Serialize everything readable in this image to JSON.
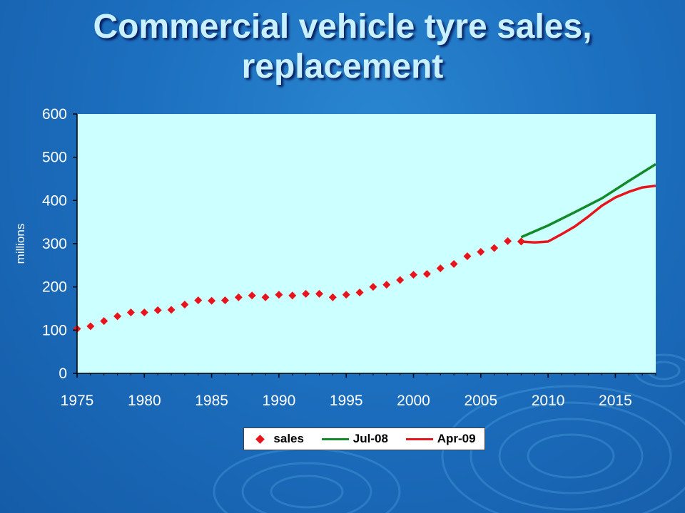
{
  "slide": {
    "title_lines": [
      "Commercial vehicle tyre sales,",
      "replacement"
    ]
  },
  "colors": {
    "plot_bg": "#ccffff",
    "sales": "#e8141c",
    "jul08": "#138a2a",
    "apr09": "#e8141c",
    "axis": "#000000"
  },
  "chart_data": {
    "type": "line",
    "title": "Commercial vehicle tyre sales, replacement",
    "xlabel": "",
    "ylabel": "millions",
    "xlim": [
      1975,
      2018
    ],
    "ylim": [
      0,
      600
    ],
    "x_ticks": [
      1975,
      1980,
      1985,
      1990,
      1995,
      2000,
      2005,
      2010,
      2015
    ],
    "y_ticks": [
      0,
      100,
      200,
      300,
      400,
      500,
      600
    ],
    "grid": false,
    "legend_position": "bottom",
    "series": [
      {
        "name": "sales",
        "style": "markers",
        "x": [
          1975,
          1976,
          1977,
          1978,
          1979,
          1980,
          1981,
          1982,
          1983,
          1984,
          1985,
          1986,
          1987,
          1988,
          1989,
          1990,
          1991,
          1992,
          1993,
          1994,
          1995,
          1996,
          1997,
          1998,
          1999,
          2000,
          2001,
          2002,
          2003,
          2004,
          2005,
          2006,
          2007,
          2008
        ],
        "y": [
          103,
          109,
          121,
          132,
          141,
          141,
          146,
          147,
          159,
          169,
          168,
          169,
          176,
          180,
          176,
          182,
          180,
          184,
          184,
          176,
          182,
          187,
          200,
          205,
          216,
          228,
          230,
          243,
          253,
          271,
          281,
          290,
          306,
          305
        ]
      },
      {
        "name": "Jul-08",
        "style": "line",
        "x": [
          2008,
          2010,
          2012,
          2014,
          2016,
          2018
        ],
        "y": [
          315,
          342,
          373,
          405,
          445,
          484
        ]
      },
      {
        "name": "Apr-09",
        "style": "line",
        "x": [
          2008,
          2009,
          2010,
          2011,
          2012,
          2013,
          2014,
          2015,
          2016,
          2017,
          2018
        ],
        "y": [
          305,
          303,
          305,
          322,
          340,
          363,
          388,
          407,
          420,
          430,
          434
        ]
      }
    ]
  }
}
